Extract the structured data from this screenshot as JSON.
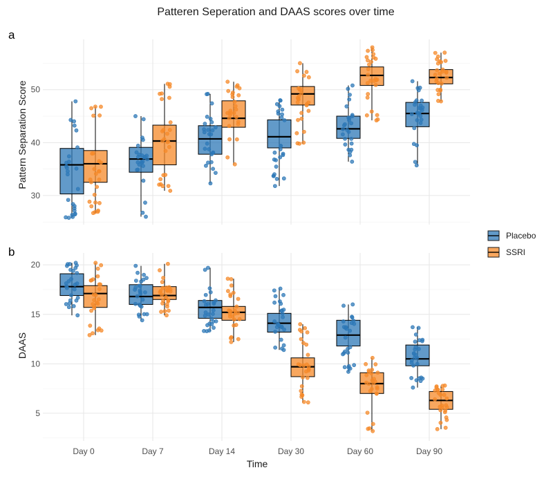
{
  "title": "Patteren Seperation and DAAS scores over time",
  "xlabel": "Time",
  "colors": {
    "Placebo": "#2E78B7",
    "SSRI": "#F58A2A"
  },
  "legend": {
    "position": "right",
    "items": [
      "Placebo",
      "SSRI"
    ]
  },
  "chart_data": [
    {
      "type": "box",
      "panel": "a",
      "ylabel": "Pattern Separation Score",
      "categories": [
        "Day 0",
        "Day 7",
        "Day 14",
        "Day 30",
        "Day 60",
        "Day 90"
      ],
      "ylim": [
        24.5,
        59.5
      ],
      "yticks": [
        30,
        40,
        50
      ],
      "grid": true,
      "series": [
        {
          "name": "Placebo",
          "boxes": [
            {
              "q1": 30.3,
              "median": 35.8,
              "q3": 38.9,
              "whisker_low": 25.8,
              "whisker_high": 47.8
            },
            {
              "q1": 34.4,
              "median": 36.9,
              "q3": 39.1,
              "whisker_low": 26.0,
              "whisker_high": 45.0
            },
            {
              "q1": 37.8,
              "median": 40.7,
              "q3": 43.2,
              "whisker_low": 32.3,
              "whisker_high": 49.2
            },
            {
              "q1": 39.0,
              "median": 41.1,
              "q3": 44.3,
              "whisker_low": 31.8,
              "whisker_high": 48.0
            },
            {
              "q1": 40.8,
              "median": 42.6,
              "q3": 45.0,
              "whisker_low": 36.4,
              "whisker_high": 50.8
            },
            {
              "q1": 43.0,
              "median": 45.5,
              "q3": 47.6,
              "whisker_low": 35.7,
              "whisker_high": 51.6
            }
          ]
        },
        {
          "name": "SSRI",
          "boxes": [
            {
              "q1": 32.5,
              "median": 36.0,
              "q3": 38.5,
              "whisker_low": 26.7,
              "whisker_high": 46.8
            },
            {
              "q1": 35.8,
              "median": 40.3,
              "q3": 43.3,
              "whisker_low": 30.9,
              "whisker_high": 51.1
            },
            {
              "q1": 42.9,
              "median": 44.6,
              "q3": 47.9,
              "whisker_low": 35.9,
              "whisker_high": 51.5
            },
            {
              "q1": 47.1,
              "median": 49.2,
              "q3": 50.6,
              "whisker_low": 39.8,
              "whisker_high": 55.0
            },
            {
              "q1": 50.8,
              "median": 52.7,
              "q3": 54.3,
              "whisker_low": 44.2,
              "whisker_high": 58.0
            },
            {
              "q1": 51.1,
              "median": 52.3,
              "q3": 53.8,
              "whisker_low": 47.8,
              "whisker_high": 57.0
            }
          ]
        }
      ]
    },
    {
      "type": "box",
      "panel": "b",
      "ylabel": "DAAS",
      "categories": [
        "Day 0",
        "Day 7",
        "Day 14",
        "Day 30",
        "Day 60",
        "Day 90"
      ],
      "ylim": [
        2.2,
        21.2
      ],
      "yticks": [
        5,
        10,
        15,
        20
      ],
      "grid": true,
      "series": [
        {
          "name": "Placebo",
          "boxes": [
            {
              "q1": 16.9,
              "median": 17.8,
              "q3": 19.1,
              "whisker_low": 14.9,
              "whisker_high": 20.2
            },
            {
              "q1": 16.0,
              "median": 16.8,
              "q3": 18.0,
              "whisker_low": 14.4,
              "whisker_high": 19.9
            },
            {
              "q1": 14.6,
              "median": 15.7,
              "q3": 16.4,
              "whisker_low": 13.3,
              "whisker_high": 19.7
            },
            {
              "q1": 13.2,
              "median": 14.1,
              "q3": 15.1,
              "whisker_low": 11.4,
              "whisker_high": 17.6
            },
            {
              "q1": 11.8,
              "median": 12.9,
              "q3": 14.4,
              "whisker_low": 9.2,
              "whisker_high": 16.0
            },
            {
              "q1": 9.8,
              "median": 10.5,
              "q3": 11.9,
              "whisker_low": 7.6,
              "whisker_high": 13.7
            }
          ]
        },
        {
          "name": "SSRI",
          "boxes": [
            {
              "q1": 15.7,
              "median": 17.1,
              "q3": 17.9,
              "whisker_low": 12.9,
              "whisker_high": 20.2
            },
            {
              "q1": 16.5,
              "median": 16.9,
              "q3": 17.8,
              "whisker_low": 14.9,
              "whisker_high": 20.1
            },
            {
              "q1": 14.4,
              "median": 15.2,
              "q3": 15.8,
              "whisker_low": 12.2,
              "whisker_high": 18.6
            },
            {
              "q1": 8.7,
              "median": 9.7,
              "q3": 10.6,
              "whisker_low": 6.1,
              "whisker_high": 14.0
            },
            {
              "q1": 7.0,
              "median": 8.0,
              "q3": 9.1,
              "whisker_low": 3.2,
              "whisker_high": 10.6
            },
            {
              "q1": 5.4,
              "median": 6.3,
              "q3": 7.2,
              "whisker_low": 3.4,
              "whisker_high": 7.8
            }
          ]
        }
      ]
    }
  ]
}
